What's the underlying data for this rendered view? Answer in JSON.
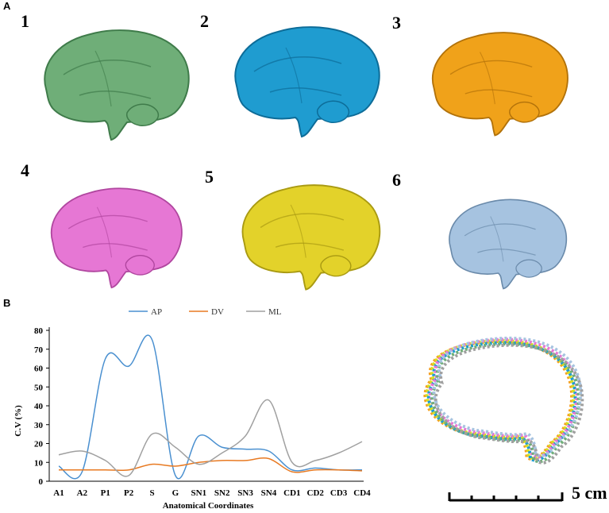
{
  "panel_labels": {
    "a": "A",
    "b": "B"
  },
  "brains": [
    {
      "label": "1",
      "color": "#6fae78",
      "shade": "#3f7b4a"
    },
    {
      "label": "2",
      "color": "#1f9cd0",
      "shade": "#0d6c98"
    },
    {
      "label": "3",
      "color": "#f0a21a",
      "shade": "#b2720a"
    },
    {
      "label": "4",
      "color": "#e677d4",
      "shade": "#b0469f"
    },
    {
      "label": "5",
      "color": "#e3d22a",
      "shade": "#a99a12"
    },
    {
      "label": "6",
      "color": "#a6c3e0",
      "shade": "#6a8aaa"
    }
  ],
  "chart_data": {
    "type": "line",
    "categories": [
      "A1",
      "A2",
      "P1",
      "P2",
      "S",
      "G",
      "SN1",
      "SN2",
      "SN3",
      "SN4",
      "CD1",
      "CD2",
      "CD3",
      "CD4"
    ],
    "series": [
      {
        "name": "AP",
        "color": "#4a90d0",
        "values": [
          8,
          5,
          65,
          61,
          75,
          3,
          24,
          18,
          17,
          16,
          6,
          7,
          6,
          6
        ]
      },
      {
        "name": "DV",
        "color": "#e87a22",
        "values": [
          6,
          6,
          6,
          6,
          9,
          8,
          10,
          11,
          11,
          12,
          5,
          6,
          6,
          5.5
        ]
      },
      {
        "name": "ML",
        "color": "#a0a0a0",
        "values": [
          14,
          16,
          11,
          3,
          25,
          18,
          9,
          15,
          24,
          43,
          10,
          11,
          15,
          21
        ]
      }
    ],
    "xlabel": "Anatomical Coordinates",
    "ylabel": "C.V (%)",
    "ylim": [
      0,
      80
    ],
    "yticks": [
      0,
      10,
      20,
      30,
      40,
      50,
      60,
      70,
      80
    ],
    "legend_position": "top",
    "grid": false
  },
  "outline_colors": [
    "#f4a020",
    "#d8e020",
    "#1f9cd0",
    "#e677d4",
    "#6fae78",
    "#a6c3e0",
    "#a0a0a0"
  ],
  "scale_bar": {
    "label": "5 cm"
  }
}
